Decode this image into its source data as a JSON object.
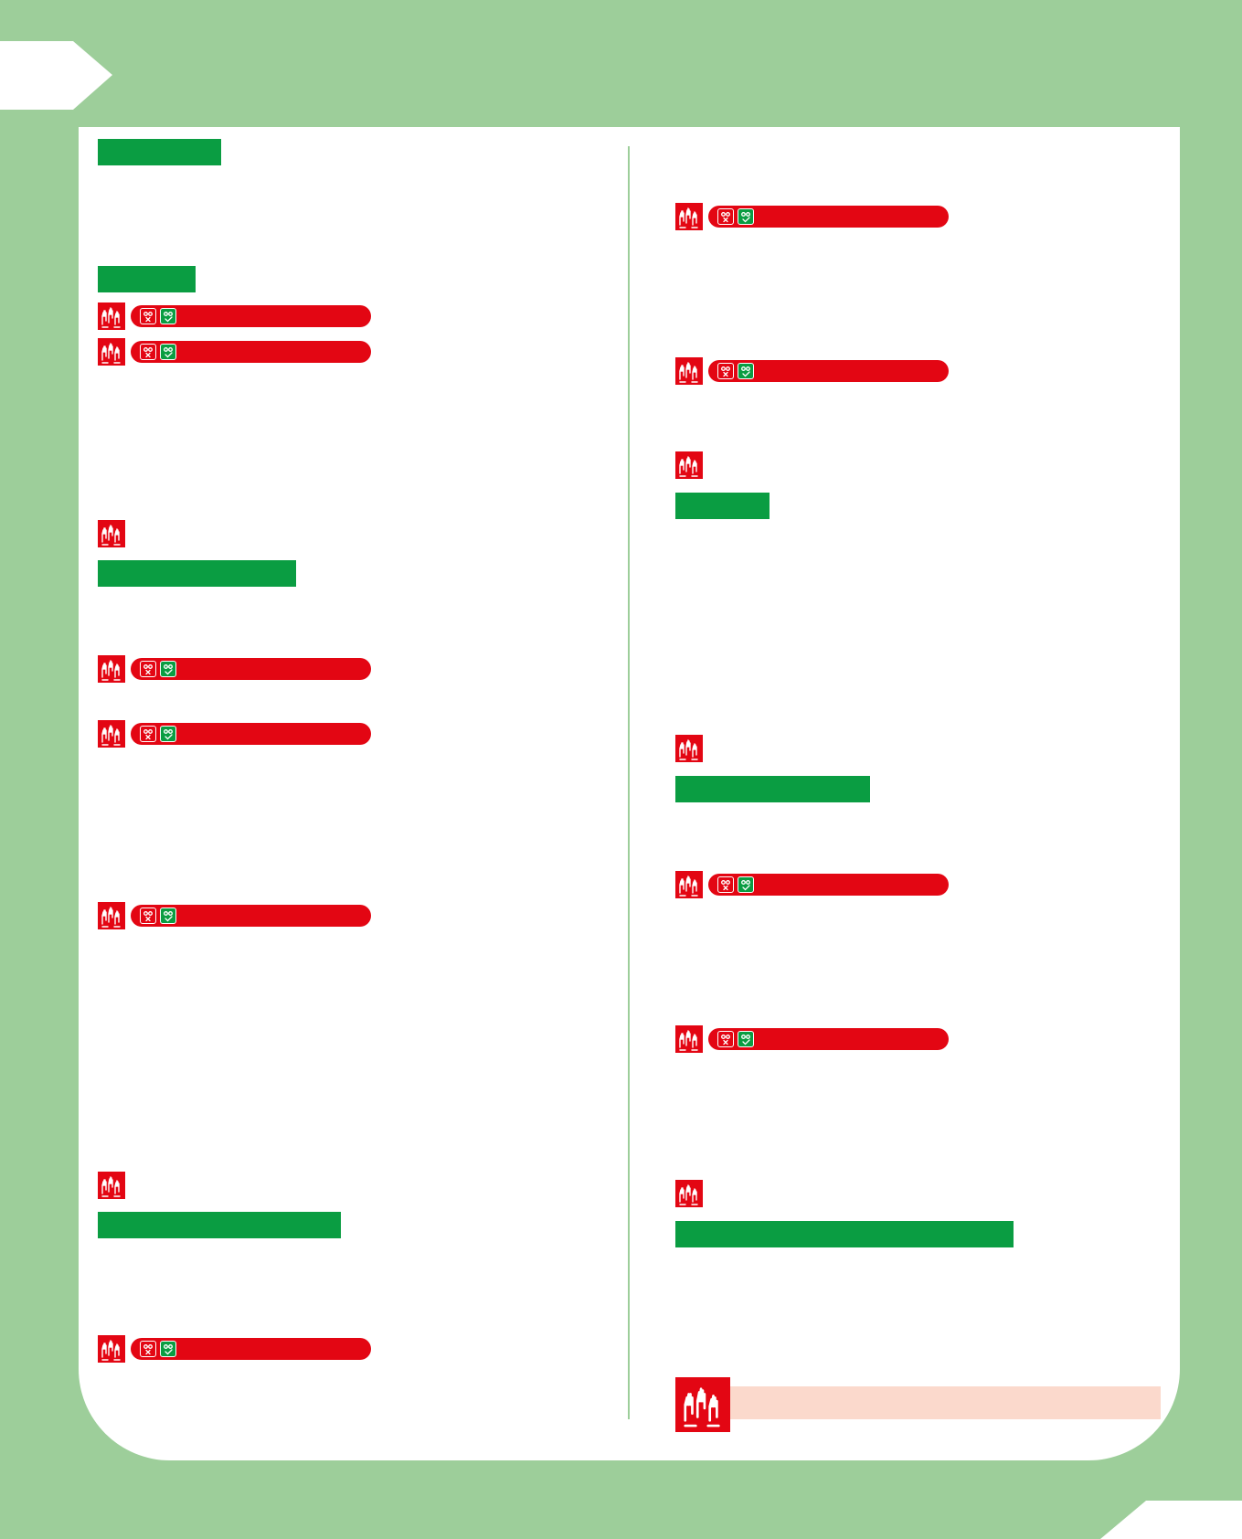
{
  "colors": {
    "page_background": "#9dce9a",
    "card": "#ffffff",
    "heading_bar": "#0a9d42",
    "activity_red": "#e30613",
    "note_box": "#fbd9cc"
  },
  "icons": {
    "group": "raised-hands-icon",
    "rating_bad": "sad-face-cross-icon",
    "rating_good": "happy-face-check-icon"
  },
  "left_column": {
    "heading_bars": 4,
    "activity_icons": 8,
    "rating_pills": 6
  },
  "right_column": {
    "heading_bars": 3,
    "activity_icons": 8,
    "rating_pills": 4,
    "has_note_box": true
  }
}
